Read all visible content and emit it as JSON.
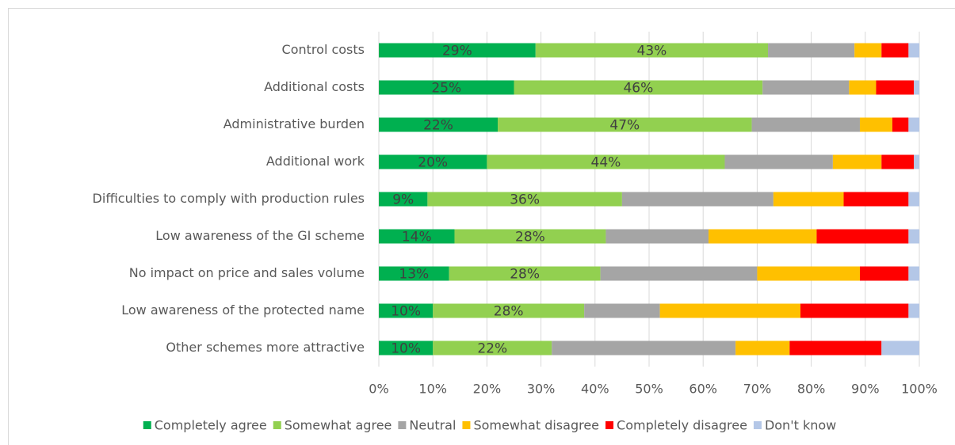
{
  "chart_data": {
    "type": "stacked-bar-horizontal",
    "categories": [
      "Control costs",
      "Additional costs",
      "Administrative burden",
      "Additional work",
      "Difficulties to comply with production rules",
      "Low awareness of the GI scheme",
      "No impact on price and sales volume",
      "Low awareness of the protected name",
      "Other schemes more attractive"
    ],
    "series": [
      {
        "name": "Completely agree",
        "color": "#00b050",
        "values": [
          29,
          25,
          22,
          20,
          9,
          14,
          13,
          10,
          10
        ],
        "value_labels": [
          "29%",
          "25%",
          "22%",
          "20%",
          "9%",
          "14%",
          "13%",
          "10%",
          "10%"
        ]
      },
      {
        "name": "Somewhat agree",
        "color": "#92d050",
        "values": [
          43,
          46,
          47,
          44,
          36,
          28,
          28,
          28,
          22
        ],
        "value_labels": [
          "43%",
          "46%",
          "47%",
          "44%",
          "36%",
          "28%",
          "28%",
          "28%",
          "22%"
        ]
      },
      {
        "name": "Neutral",
        "color": "#a5a5a5",
        "values": [
          16,
          16,
          20,
          20,
          28,
          19,
          29,
          14,
          34
        ]
      },
      {
        "name": "Somewhat disagree",
        "color": "#ffc000",
        "values": [
          5,
          5,
          6,
          9,
          13,
          20,
          19,
          26,
          10
        ]
      },
      {
        "name": "Completely disagree",
        "color": "#ff0000",
        "values": [
          5,
          7,
          3,
          6,
          12,
          17,
          9,
          20,
          17
        ]
      },
      {
        "name": "Don't know",
        "color": "#b4c7e7",
        "values": [
          2,
          1,
          2,
          1,
          2,
          2,
          2,
          2,
          7
        ]
      }
    ],
    "xlim": [
      0,
      100
    ],
    "xticks": [
      {
        "value": 0,
        "label": "0%"
      },
      {
        "value": 10,
        "label": "10%"
      },
      {
        "value": 20,
        "label": "20%"
      },
      {
        "value": 30,
        "label": "30%"
      },
      {
        "value": 40,
        "label": "40%"
      },
      {
        "value": 50,
        "label": "50%"
      },
      {
        "value": 60,
        "label": "60%"
      },
      {
        "value": 70,
        "label": "70%"
      },
      {
        "value": 80,
        "label": "80%"
      },
      {
        "value": 90,
        "label": "90%"
      },
      {
        "value": 100,
        "label": "100%"
      }
    ],
    "grid": true,
    "legend": "bottom"
  }
}
